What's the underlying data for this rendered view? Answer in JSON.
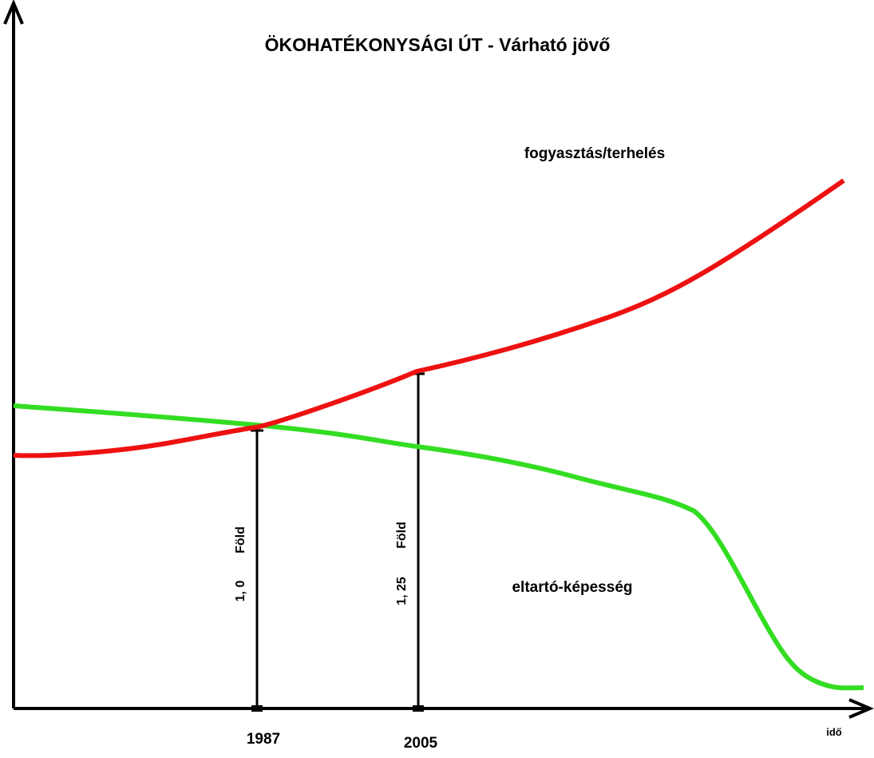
{
  "title": "ÖKOHATÉKONYSÁGI ÚT - Várható jövő",
  "curves": {
    "consumption": "fogyasztás/terhelés",
    "capacity": "eltartó-képesség"
  },
  "markers": [
    {
      "year": "1987",
      "ratio": "1, 0",
      "unit": "Föld"
    },
    {
      "year": "2005",
      "ratio": "1, 25",
      "unit": "Föld"
    }
  ],
  "x_axis_label": "idő"
}
